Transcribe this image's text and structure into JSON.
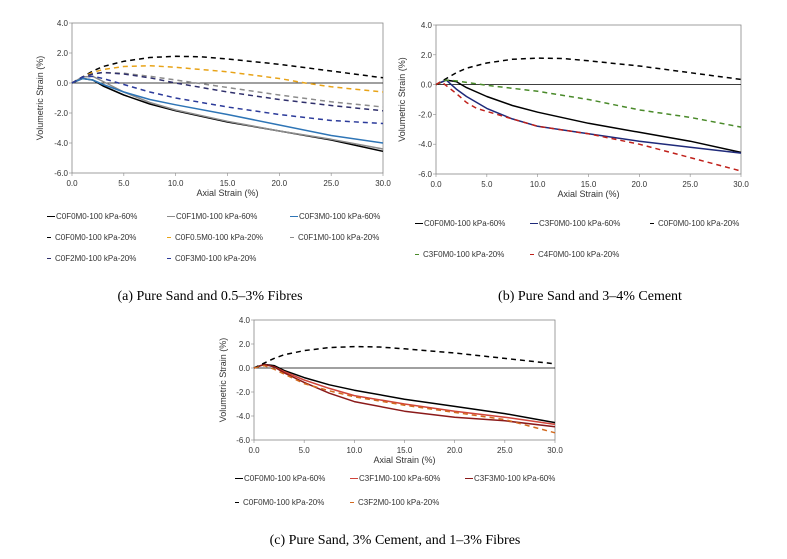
{
  "chart_data": [
    {
      "id": "a",
      "type": "line",
      "caption": "(a) Pure Sand and 0.5–3% Fibres",
      "xlabel": "Axial Strain (%)",
      "ylabel": "Volumetric Strain (%)",
      "xlim": [
        0,
        30
      ],
      "ylim": [
        -6,
        4
      ],
      "xticks": [
        "0.0",
        "5.0",
        "10.0",
        "15.0",
        "20.0",
        "25.0",
        "30.0"
      ],
      "yticks": [
        "4.0",
        "2.0",
        "0.0",
        "-2.0",
        "-4.0",
        "-6.0"
      ],
      "grid": false,
      "legend": "bottom",
      "series": [
        {
          "name": "C0F0M0-100 kPa-60%",
          "color": "#000000",
          "dash": false,
          "x": [
            0,
            1,
            2,
            3,
            5,
            7.5,
            10,
            15,
            20,
            25,
            30
          ],
          "y": [
            0,
            0.3,
            0.2,
            -0.2,
            -0.8,
            -1.4,
            -1.85,
            -2.6,
            -3.2,
            -3.8,
            -4.55
          ]
        },
        {
          "name": "C0F1M0-100 kPa-60%",
          "color": "#8c8c8c",
          "dash": false,
          "x": [
            0,
            1,
            2,
            3,
            5,
            7.5,
            10,
            15,
            20,
            25,
            30
          ],
          "y": [
            0,
            0.4,
            0.45,
            0.1,
            -0.6,
            -1.3,
            -1.8,
            -2.55,
            -3.2,
            -3.75,
            -4.4
          ]
        },
        {
          "name": "C0F3M0-100 kPa-60%",
          "color": "#2e75b6",
          "dash": false,
          "x": [
            0,
            1,
            2,
            3,
            5,
            7.5,
            10,
            15,
            20,
            25,
            30
          ],
          "y": [
            0,
            0.3,
            0.2,
            -0.1,
            -0.6,
            -1.1,
            -1.45,
            -2.1,
            -2.8,
            -3.5,
            -4.0
          ]
        },
        {
          "name": "C0F0M0-100 kPa-20%",
          "color": "#000000",
          "dash": true,
          "x": [
            0,
            1,
            2,
            3,
            5,
            7.5,
            10,
            12.5,
            15,
            20,
            25,
            30
          ],
          "y": [
            0,
            0.4,
            0.8,
            1.1,
            1.45,
            1.7,
            1.78,
            1.75,
            1.6,
            1.25,
            0.8,
            0.35
          ]
        },
        {
          "name": "C0F0.5M0-100 kPa-20%",
          "color": "#e8a317",
          "dash": true,
          "x": [
            0,
            1,
            2,
            3,
            5,
            7.5,
            10,
            15,
            20,
            22.5,
            25,
            30
          ],
          "y": [
            0,
            0.4,
            0.7,
            0.9,
            1.1,
            1.15,
            1.05,
            0.75,
            0.3,
            0,
            -0.25,
            -0.6
          ]
        },
        {
          "name": "C0F1M0-100 kPa-20%",
          "color": "#8c8c8c",
          "dash": true,
          "x": [
            0,
            1,
            2,
            3,
            5,
            7.5,
            10,
            15,
            20,
            25,
            30
          ],
          "y": [
            0,
            0.4,
            0.6,
            0.7,
            0.65,
            0.45,
            0.2,
            -0.3,
            -0.8,
            -1.25,
            -1.6
          ]
        },
        {
          "name": "C0F2M0-100 kPa-20%",
          "color": "#2f2f6b",
          "dash": true,
          "x": [
            0,
            1,
            2,
            3,
            5,
            7.5,
            10,
            15,
            20,
            25,
            30
          ],
          "y": [
            0,
            0.4,
            0.6,
            0.7,
            0.6,
            0.35,
            0,
            -0.6,
            -1.1,
            -1.5,
            -1.85
          ]
        },
        {
          "name": "C0F3M0-100 kPa-20%",
          "color": "#2b3a9a",
          "dash": true,
          "x": [
            0,
            1,
            2,
            3,
            5,
            7.5,
            10,
            15,
            20,
            25,
            30
          ],
          "y": [
            0,
            0.4,
            0.45,
            0.3,
            -0.1,
            -0.6,
            -1.0,
            -1.6,
            -2.1,
            -2.5,
            -2.7
          ]
        }
      ]
    },
    {
      "id": "b",
      "type": "line",
      "caption": "(b) Pure Sand and 3–4% Cement",
      "xlabel": "Axial Strain (%)",
      "ylabel": "Volumetric Strain (%)",
      "xlim": [
        0,
        30
      ],
      "ylim": [
        -6,
        4
      ],
      "xticks": [
        "0.0",
        "5.0",
        "10.0",
        "15.0",
        "20.0",
        "25.0",
        "30.0"
      ],
      "yticks": [
        "4.0",
        "2.0",
        "0.0",
        "-2.0",
        "-4.0",
        "-6.0"
      ],
      "grid": false,
      "legend": "bottom",
      "series": [
        {
          "name": "C0F0M0-100 kPa-60%",
          "color": "#000000",
          "dash": false,
          "x": [
            0,
            1,
            2,
            3,
            5,
            7.5,
            10,
            15,
            20,
            25,
            30
          ],
          "y": [
            0,
            0.3,
            0.2,
            -0.2,
            -0.8,
            -1.4,
            -1.85,
            -2.6,
            -3.2,
            -3.8,
            -4.55
          ]
        },
        {
          "name": "C3F0M0-100 kPa-60%",
          "color": "#1f2a7a",
          "dash": false,
          "x": [
            0,
            1,
            2,
            3,
            5,
            7.5,
            10,
            15,
            20,
            25,
            30
          ],
          "y": [
            0,
            0.3,
            -0.3,
            -0.8,
            -1.6,
            -2.3,
            -2.8,
            -3.3,
            -3.8,
            -4.2,
            -4.6
          ]
        },
        {
          "name": "C0F0M0-100 kPa-20%",
          "color": "#000000",
          "dash": true,
          "x": [
            0,
            1,
            2,
            3,
            5,
            7.5,
            10,
            12.5,
            15,
            20,
            25,
            30
          ],
          "y": [
            0,
            0.4,
            0.8,
            1.1,
            1.45,
            1.7,
            1.78,
            1.75,
            1.6,
            1.25,
            0.8,
            0.35
          ]
        },
        {
          "name": "C3F0M0-100 kPa-20%",
          "color": "#4a8a2a",
          "dash": true,
          "x": [
            0,
            1,
            2,
            3,
            5,
            10,
            15,
            20,
            25,
            30
          ],
          "y": [
            0,
            0.3,
            0.25,
            0.15,
            -0.05,
            -0.45,
            -1.0,
            -1.7,
            -2.2,
            -2.85
          ]
        },
        {
          "name": "C4F0M0-100 kPa-20%",
          "color": "#c0201a",
          "dash": true,
          "x": [
            0,
            0.5,
            2,
            3,
            4,
            5,
            7.5,
            10,
            15,
            20,
            25,
            30
          ],
          "y": [
            0,
            0.2,
            -0.6,
            -1.2,
            -1.6,
            -1.8,
            -2.3,
            -2.8,
            -3.3,
            -4.0,
            -4.9,
            -5.8
          ]
        }
      ]
    },
    {
      "id": "c",
      "type": "line",
      "caption": "(c)  Pure Sand, 3% Cement, and 1–3% Fibres",
      "xlabel": "Axial Strain (%)",
      "ylabel": "Volumetric Strain (%)",
      "xlim": [
        0,
        30
      ],
      "ylim": [
        -6,
        4
      ],
      "xticks": [
        "0.0",
        "5.0",
        "10.0",
        "15.0",
        "20.0",
        "25.0",
        "30.0"
      ],
      "yticks": [
        "4.0",
        "2.0",
        "0.0",
        "-2.0",
        "-4.0",
        "-6.0"
      ],
      "grid": false,
      "legend": "bottom",
      "series": [
        {
          "name": "C0F0M0-100 kPa-60%",
          "color": "#000000",
          "dash": false,
          "x": [
            0,
            1,
            2,
            3,
            5,
            7.5,
            10,
            15,
            20,
            25,
            30
          ],
          "y": [
            0,
            0.3,
            0.2,
            -0.2,
            -0.8,
            -1.4,
            -1.85,
            -2.6,
            -3.2,
            -3.8,
            -4.55
          ]
        },
        {
          "name": "C3F1M0-100 kPa-60%",
          "color": "#d0443a",
          "dash": false,
          "x": [
            0,
            1,
            2,
            3,
            5,
            7.5,
            10,
            15,
            20,
            25,
            30
          ],
          "y": [
            0,
            0.3,
            0.1,
            -0.3,
            -1.0,
            -1.7,
            -2.3,
            -3.0,
            -3.6,
            -4.1,
            -4.7
          ]
        },
        {
          "name": "C3F3M0-100 kPa-60%",
          "color": "#8b1a1a",
          "dash": false,
          "x": [
            0,
            1,
            2,
            3,
            5,
            7.5,
            10,
            15,
            20,
            25,
            30
          ],
          "y": [
            0,
            0.3,
            0.1,
            -0.4,
            -1.2,
            -2.1,
            -2.8,
            -3.6,
            -4.1,
            -4.4,
            -4.9
          ]
        },
        {
          "name": "C0F0M0-100 kPa-20%",
          "color": "#000000",
          "dash": true,
          "x": [
            0,
            1,
            2,
            3,
            5,
            7.5,
            10,
            12.5,
            15,
            20,
            25,
            30
          ],
          "y": [
            0,
            0.4,
            0.8,
            1.1,
            1.45,
            1.7,
            1.78,
            1.75,
            1.6,
            1.25,
            0.8,
            0.35
          ]
        },
        {
          "name": "C3F2M0-100 kPa-20%",
          "color": "#d2691e",
          "dash": true,
          "x": [
            0,
            1,
            2,
            3,
            5,
            7.5,
            10,
            15,
            20,
            25,
            30
          ],
          "y": [
            0,
            0.2,
            -0.1,
            -0.5,
            -1.3,
            -1.9,
            -2.4,
            -3.1,
            -3.7,
            -4.3,
            -5.4
          ]
        }
      ]
    }
  ]
}
